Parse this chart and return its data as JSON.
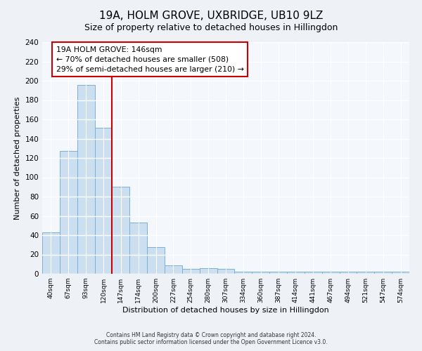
{
  "title": "19A, HOLM GROVE, UXBRIDGE, UB10 9LZ",
  "subtitle": "Size of property relative to detached houses in Hillingdon",
  "xlabel": "Distribution of detached houses by size in Hillingdon",
  "ylabel": "Number of detached properties",
  "bar_labels": [
    "40sqm",
    "67sqm",
    "93sqm",
    "120sqm",
    "147sqm",
    "174sqm",
    "200sqm",
    "227sqm",
    "254sqm",
    "280sqm",
    "307sqm",
    "334sqm",
    "360sqm",
    "387sqm",
    "414sqm",
    "441sqm",
    "467sqm",
    "494sqm",
    "521sqm",
    "547sqm",
    "574sqm"
  ],
  "bar_values": [
    43,
    127,
    196,
    151,
    90,
    53,
    28,
    9,
    5,
    6,
    5,
    2,
    2,
    2,
    2,
    2,
    2,
    2,
    2,
    2,
    2
  ],
  "bar_color": "#ccdff0",
  "bar_edge_color": "#7ab0d4",
  "vline_color": "#cc0000",
  "annotation_title": "19A HOLM GROVE: 146sqm",
  "annotation_line1": "← 70% of detached houses are smaller (508)",
  "annotation_line2": "29% of semi-detached houses are larger (210) →",
  "annotation_box_color": "#ffffff",
  "annotation_box_edge": "#cc0000",
  "ylim": [
    0,
    240
  ],
  "yticks": [
    0,
    20,
    40,
    60,
    80,
    100,
    120,
    140,
    160,
    180,
    200,
    220,
    240
  ],
  "footer1": "Contains HM Land Registry data © Crown copyright and database right 2024.",
  "footer2": "Contains public sector information licensed under the Open Government Licence v3.0.",
  "bg_color": "#eef2f7",
  "plot_bg_color": "#f4f7fb",
  "title_fontsize": 11,
  "subtitle_fontsize": 9
}
